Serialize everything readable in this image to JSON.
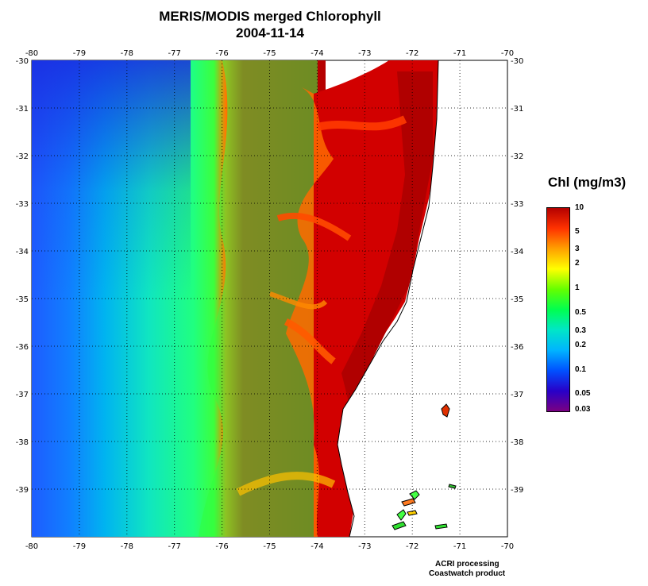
{
  "title": {
    "line1": "MERIS/MODIS merged Chlorophyll",
    "line2": "2004-11-14"
  },
  "map": {
    "lon_ticks": [
      "-80",
      "-79",
      "-78",
      "-77",
      "-76",
      "-75",
      "-74",
      "-73",
      "-72",
      "-71",
      "-70"
    ],
    "lat_ticks": [
      "-30",
      "-31",
      "-32",
      "-33",
      "-34",
      "-35",
      "-36",
      "-37",
      "-38",
      "-39"
    ],
    "lon_range": [
      -80,
      -70
    ],
    "lat_range": [
      -30,
      -40
    ],
    "grid": "dotted",
    "land_color": "#ffffff"
  },
  "colorbar": {
    "title": "Chl (mg/m3)",
    "scale": "log",
    "range": [
      0.03,
      10
    ],
    "labels": [
      "10",
      "5",
      "3",
      "2",
      "1",
      "0.5",
      "0.3",
      "0.2",
      "0.1",
      "0.05",
      "0.03"
    ],
    "label_values": [
      10,
      5,
      3,
      2,
      1,
      0.5,
      0.3,
      0.2,
      0.1,
      0.05,
      0.03
    ],
    "colors": [
      "#7a0082",
      "#2800c8",
      "#0050ff",
      "#00b4ff",
      "#00e6c8",
      "#00ff50",
      "#64ff00",
      "#ffff00",
      "#ffa000",
      "#ff3200",
      "#b40000"
    ]
  },
  "credits": {
    "line1": "ACRI processing",
    "line2": "Coastwatch product"
  }
}
